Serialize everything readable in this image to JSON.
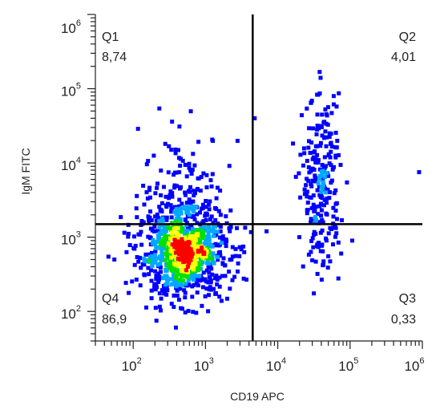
{
  "chart_data": {
    "type": "scatter",
    "style": "density-dot-plot",
    "xlabel": "CD19 APC",
    "ylabel": "IgM FITC",
    "x_scale": "log",
    "y_scale": "log",
    "xlim": [
      30,
      1000000
    ],
    "ylim": [
      40,
      1000000
    ],
    "x_ticks": [
      {
        "base": "10",
        "exp": "2",
        "value": 100
      },
      {
        "base": "10",
        "exp": "3",
        "value": 1000
      },
      {
        "base": "10",
        "exp": "4",
        "value": 10000
      },
      {
        "base": "10",
        "exp": "5",
        "value": 100000
      },
      {
        "base": "10",
        "exp": "6",
        "value": 1000000
      }
    ],
    "y_ticks": [
      {
        "base": "10",
        "exp": "2",
        "value": 100
      },
      {
        "base": "10",
        "exp": "3",
        "value": 1000
      },
      {
        "base": "10",
        "exp": "4",
        "value": 10000
      },
      {
        "base": "10",
        "exp": "5",
        "value": 100000
      },
      {
        "base": "10",
        "exp": "6",
        "value": 1000000
      }
    ],
    "gate": {
      "x": 4500,
      "y": 1500
    },
    "quadrants": [
      {
        "name": "Q1",
        "value": "8,74",
        "position": "top-left"
      },
      {
        "name": "Q2",
        "value": "4,01",
        "position": "top-right"
      },
      {
        "name": "Q3",
        "value": "0,33",
        "position": "bottom-right"
      },
      {
        "name": "Q4",
        "value": "86,9",
        "position": "bottom-left"
      }
    ],
    "populations": [
      {
        "name": "CD19- IgM- cluster",
        "center": [
          500,
          600
        ],
        "spread_log": [
          0.32,
          0.3
        ],
        "count": 850
      },
      {
        "name": "CD19- IgM+ tail",
        "center": [
          500,
          4000
        ],
        "spread_log": [
          0.3,
          0.4
        ],
        "count": 150
      },
      {
        "name": "CD19+ IgM+ cluster",
        "center": [
          40000,
          6000
        ],
        "spread_log": [
          0.13,
          0.55
        ],
        "count": 230
      },
      {
        "name": "CD19+ IgM- cluster",
        "center": [
          40000,
          800
        ],
        "spread_log": [
          0.12,
          0.15
        ],
        "count": 25
      }
    ],
    "outliers": [
      [
        4800,
        40000
      ],
      [
        900000,
        7500
      ],
      [
        7000,
        1200
      ],
      [
        55,
        500
      ]
    ],
    "colors": {
      "low": "#0000ff",
      "mid1": "#00a8ff",
      "mid2": "#00e000",
      "mid3": "#ffff00",
      "high": "#ff0000",
      "gate": "#000000",
      "frame": "#222222"
    }
  }
}
